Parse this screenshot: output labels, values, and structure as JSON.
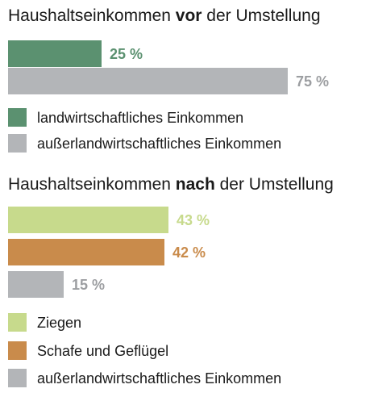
{
  "chart_data": [
    {
      "type": "bar",
      "orientation": "horizontal",
      "title": {
        "prefix": "Haushaltseinkommen ",
        "bold": "vor",
        "suffix": " der Umstellung"
      },
      "unit": "%",
      "bars": [
        {
          "key": "landwirtschaft",
          "value": 25,
          "label": "25 %",
          "color": "#5b9170"
        },
        {
          "key": "ausserlandwirtschaft",
          "value": 75,
          "label": "75 %",
          "color": "#b3b5b8"
        }
      ],
      "legend": [
        {
          "label": "landwirtschaftliches Einkommen",
          "color": "#5b9170"
        },
        {
          "label": "außerlandwirtschaftliches Einkommen",
          "color": "#b3b5b8"
        }
      ]
    },
    {
      "type": "bar",
      "orientation": "horizontal",
      "title": {
        "prefix": "Haushaltseinkommen ",
        "bold": "nach",
        "suffix": " der Umstellung"
      },
      "unit": "%",
      "bars": [
        {
          "key": "ziegen",
          "value": 43,
          "label": "43 %",
          "color": "#c7da8c"
        },
        {
          "key": "schafe",
          "value": 42,
          "label": "42 %",
          "color": "#c98b4b"
        },
        {
          "key": "ausserlandwirtschaft",
          "value": 15,
          "label": "15 %",
          "color": "#b3b5b8"
        }
      ],
      "legend": [
        {
          "label": "Ziegen",
          "color": "#c7da8c"
        },
        {
          "label": "Schafe und Geflügel",
          "color": "#c98b4b"
        },
        {
          "label": "außerlandwirtschaftliches Einkommen",
          "color": "#b3b5b8"
        }
      ]
    }
  ]
}
